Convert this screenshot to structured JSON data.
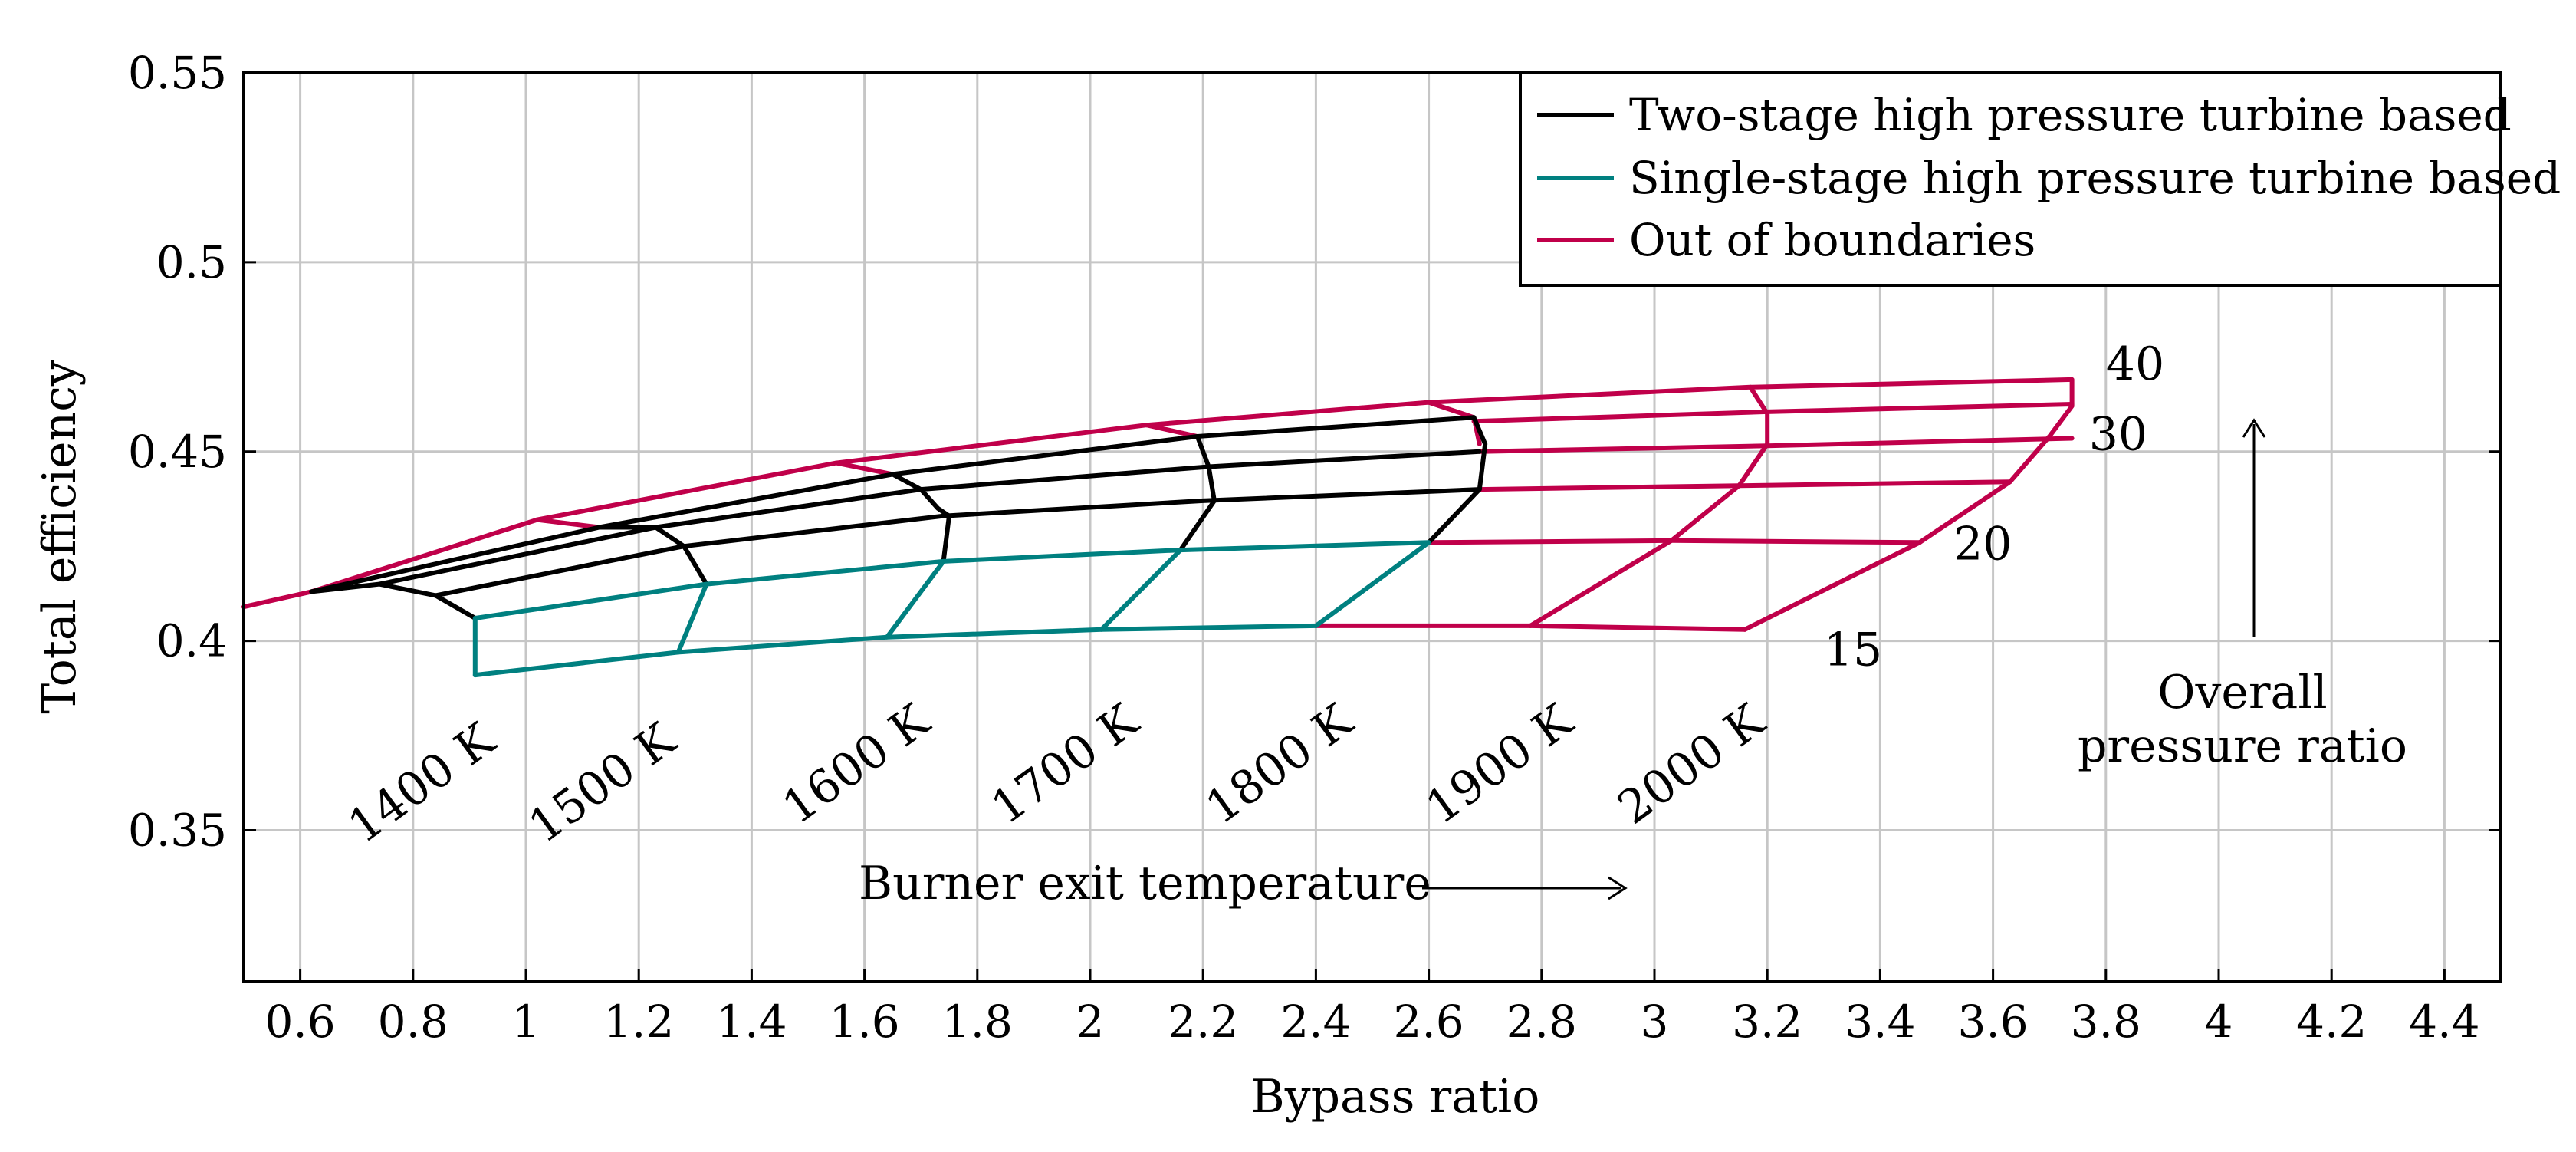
{
  "chart_data": {
    "type": "line",
    "title": "",
    "xlabel": "Bypass ratio",
    "ylabel": "Total efficiency",
    "xlim": [
      0.5,
      4.5
    ],
    "ylim": [
      0.31,
      0.55
    ],
    "x_ticks": [
      "0.6",
      "0.8",
      "1",
      "1.2",
      "1.4",
      "1.6",
      "1.8",
      "2",
      "2.2",
      "2.4",
      "2.6",
      "2.8",
      "3",
      "3.2",
      "3.4",
      "3.6",
      "3.8",
      "4",
      "4.2",
      "4.4"
    ],
    "y_ticks": [
      "0.35",
      "0.4",
      "0.45",
      "0.5",
      "0.55"
    ],
    "grid": true,
    "legend_position": "top-right",
    "legend": [
      {
        "label": "Two-stage high pressure turbine based",
        "color": "#000000"
      },
      {
        "label": "Single-stage high pressure turbine based",
        "color": "#008080"
      },
      {
        "label": "Out of boundaries",
        "color": "#C0004A"
      }
    ],
    "temperature_labels": [
      "1400 K",
      "1500 K",
      "1600 K",
      "1700 K",
      "1800 K",
      "1900 K",
      "2000 K"
    ],
    "pressure_ratio_labels": [
      "40",
      "30",
      "20",
      "15"
    ],
    "annotations": {
      "burner_exit": "Burner exit temperature",
      "opr_line1": "Overall",
      "opr_line2": "pressure ratio"
    },
    "series": [
      {
        "name": "Out of boundaries",
        "color": "#C0004A",
        "segments": [
          [
            [
              0.5,
              0.409
            ],
            [
              0.62,
              0.413
            ]
          ],
          [
            [
              0.62,
              0.413
            ],
            [
              1.02,
              0.432
            ],
            [
              1.55,
              0.447
            ],
            [
              2.1,
              0.457
            ],
            [
              2.6,
              0.463
            ],
            [
              3.17,
              0.467
            ],
            [
              3.74,
              0.469
            ]
          ],
          [
            [
              1.02,
              0.432
            ],
            [
              1.13,
              0.43
            ]
          ],
          [
            [
              1.55,
              0.447
            ],
            [
              1.65,
              0.444
            ]
          ],
          [
            [
              2.1,
              0.457
            ],
            [
              2.19,
              0.454
            ]
          ],
          [
            [
              2.6,
              0.463
            ],
            [
              2.68,
              0.459
            ],
            [
              2.69,
              0.452
            ]
          ],
          [
            [
              2.69,
              0.45
            ],
            [
              3.2,
              0.4515
            ],
            [
              3.74,
              0.4535
            ]
          ],
          [
            [
              2.69,
              0.44
            ],
            [
              3.15,
              0.441
            ],
            [
              3.63,
              0.442
            ]
          ],
          [
            [
              2.6,
              0.426
            ],
            [
              3.03,
              0.4265
            ],
            [
              3.47,
              0.426
            ]
          ],
          [
            [
              2.4,
              0.404
            ],
            [
              2.78,
              0.404
            ],
            [
              3.16,
              0.403
            ]
          ],
          [
            [
              2.68,
              0.458
            ],
            [
              3.2,
              0.4605
            ],
            [
              3.74,
              0.4625
            ]
          ],
          [
            [
              3.17,
              0.467
            ],
            [
              3.2,
              0.46
            ],
            [
              3.2,
              0.452
            ],
            [
              3.15,
              0.441
            ],
            [
              3.03,
              0.4265
            ],
            [
              2.78,
              0.404
            ]
          ],
          [
            [
              3.74,
              0.469
            ],
            [
              3.74,
              0.462
            ],
            [
              3.7,
              0.454
            ],
            [
              3.63,
              0.442
            ],
            [
              3.47,
              0.426
            ],
            [
              3.16,
              0.403
            ]
          ]
        ]
      },
      {
        "name": "Two-stage high pressure turbine based",
        "color": "#000000",
        "segments": [
          [
            [
              0.62,
              0.413
            ],
            [
              1.13,
              0.43
            ],
            [
              1.65,
              0.444
            ],
            [
              2.19,
              0.454
            ],
            [
              2.68,
              0.459
            ]
          ],
          [
            [
              0.62,
              0.413
            ],
            [
              0.74,
              0.415
            ],
            [
              1.23,
              0.43
            ],
            [
              1.7,
              0.44
            ],
            [
              2.21,
              0.446
            ],
            [
              2.69,
              0.45
            ]
          ],
          [
            [
              0.74,
              0.415
            ],
            [
              0.84,
              0.412
            ],
            [
              1.28,
              0.425
            ],
            [
              1.74,
              0.433
            ],
            [
              2.2,
              0.437
            ],
            [
              2.69,
              0.44
            ]
          ],
          [
            [
              1.13,
              0.43
            ],
            [
              1.23,
              0.43
            ],
            [
              1.28,
              0.425
            ],
            [
              1.32,
              0.415
            ]
          ],
          [
            [
              0.84,
              0.412
            ],
            [
              0.91,
              0.406
            ]
          ],
          [
            [
              1.65,
              0.444
            ],
            [
              1.7,
              0.44
            ],
            [
              1.73,
              0.435
            ],
            [
              1.75,
              0.433
            ],
            [
              1.74,
              0.421
            ]
          ],
          [
            [
              2.19,
              0.454
            ],
            [
              2.21,
              0.446
            ],
            [
              2.22,
              0.437
            ],
            [
              2.16,
              0.424
            ]
          ],
          [
            [
              2.68,
              0.459
            ],
            [
              2.7,
              0.452
            ],
            [
              2.69,
              0.44
            ],
            [
              2.6,
              0.426
            ]
          ]
        ]
      },
      {
        "name": "Single-stage high pressure turbine based",
        "color": "#008080",
        "segments": [
          [
            [
              0.91,
              0.406
            ],
            [
              1.32,
              0.415
            ],
            [
              1.74,
              0.421
            ],
            [
              2.16,
              0.424
            ],
            [
              2.6,
              0.426
            ]
          ],
          [
            [
              0.91,
              0.391
            ],
            [
              1.27,
              0.397
            ],
            [
              1.64,
              0.401
            ],
            [
              2.02,
              0.403
            ],
            [
              2.4,
              0.404
            ]
          ],
          [
            [
              0.91,
              0.406
            ],
            [
              0.91,
              0.391
            ]
          ],
          [
            [
              1.32,
              0.415
            ],
            [
              1.27,
              0.397
            ]
          ],
          [
            [
              1.74,
              0.421
            ],
            [
              1.64,
              0.401
            ]
          ],
          [
            [
              2.16,
              0.424
            ],
            [
              2.02,
              0.403
            ]
          ],
          [
            [
              2.6,
              0.426
            ],
            [
              2.4,
              0.404
            ]
          ]
        ]
      }
    ]
  }
}
